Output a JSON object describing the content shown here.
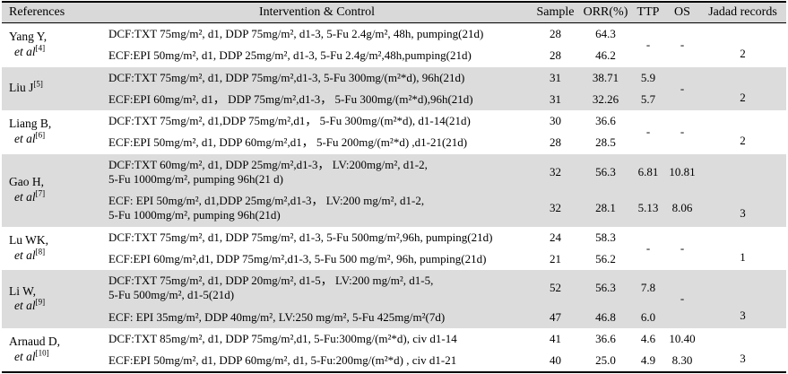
{
  "colors": {
    "header_bg": "#d9d9d9",
    "shaded_group_bg": "#dcdcdc",
    "border": "#000000",
    "text": "#000000",
    "background": "#ffffff"
  },
  "table": {
    "headers": {
      "references": "References",
      "intervention": "Intervention & Control",
      "sample": "Sample",
      "orr": "ORR(%)",
      "ttp": "TTP",
      "os": "OS",
      "jadad": "Jadad records"
    },
    "groups": [
      {
        "ref": {
          "name": "Yang Y,",
          "sup1": "",
          "etal": "et al",
          "sup2": "[4]"
        },
        "rows": [
          {
            "intervention": "DCF:TXT 75mg/m², d1, DDP 75mg/m², d1-3, 5-Fu 2.4g/m², 48h, pumping(21d)",
            "sample": "28",
            "orr": "64.3"
          },
          {
            "intervention": "ECF:EPI 50mg/m², d1, DDP 25mg/m², d1-3, 5-Fu 2.4g/m²,48h,pumping(21d)",
            "sample": "28",
            "orr": "46.2"
          }
        ],
        "ttp_shared": "-",
        "os_shared": "-",
        "jadad": "2"
      },
      {
        "ref": {
          "name": "Liu J",
          "sup1": "[5]",
          "etal": "",
          "sup2": ""
        },
        "rows": [
          {
            "intervention": "DCF:TXT 75mg/m², d1, DDP 75mg/m²,d1-3, 5-Fu 300mg/(m²*d), 96h(21d)",
            "sample": "31",
            "orr": "38.71",
            "ttp": "5.9"
          },
          {
            "intervention": "ECF:EPI 60mg/m², d1， DDP 75mg/m²,d1-3， 5-Fu 300mg/(m²*d),96h(21d)",
            "sample": "31",
            "orr": "32.26",
            "ttp": "5.7"
          }
        ],
        "os_shared": "-",
        "jadad": "2"
      },
      {
        "ref": {
          "name": "Liang B,",
          "sup1": "",
          "etal": "et al",
          "sup2": "[6]"
        },
        "rows": [
          {
            "intervention": "DCF:TXT 75mg/m², d1,DDP 75mg/m²,d1， 5-Fu 300mg/(m²*d), d1-14(21d)",
            "sample": "30",
            "orr": "36.6"
          },
          {
            "intervention": "ECF:EPI 50mg/m², d1, DDP 60mg/m²,d1， 5-Fu 200mg/(m²*d) ,d1-21(21d)",
            "sample": "28",
            "orr": "28.5"
          }
        ],
        "ttp_shared": "-",
        "os_shared": "-",
        "jadad": "2"
      },
      {
        "ref": {
          "name": "Gao H,",
          "sup1": "",
          "etal": "et al",
          "sup2": "[7]"
        },
        "rows": [
          {
            "intervention": "DCF:TXT 60mg/m², d1, DDP 25mg/m²,d1-3， LV:200mg/m², d1-2,\n5-Fu 1000mg/m², pumping 96h(21 d)",
            "sample": "32",
            "orr": "56.3",
            "ttp": "6.81",
            "os": "10.81"
          },
          {
            "intervention": "ECF: EPI 50mg/m², d1,DDP 25mg/m²,d1-3， LV:200 mg/m², d1-2,\n5-Fu 1000mg/m², pumping 96h(21d)",
            "sample": "32",
            "orr": "28.1",
            "ttp": "5.13",
            "os": "8.06"
          }
        ],
        "jadad": "3"
      },
      {
        "ref": {
          "name": "Lu WK,",
          "sup1": "",
          "etal": "et al",
          "sup2": "[8]"
        },
        "rows": [
          {
            "intervention": "DCF:TXT 75mg/m², d1, DDP 75mg/m², d1-3, 5-Fu 500mg/m²,96h, pumping(21d)",
            "sample": "24",
            "orr": "58.3"
          },
          {
            "intervention": "ECF:EPI 60mg/m²,d1, DDP 75mg/m²,d1-3, 5-Fu 500 mg/m², 96h, pumping(21d)",
            "sample": "21",
            "orr": "56.2"
          }
        ],
        "ttp_shared": "-",
        "os_shared": "-",
        "jadad": "1"
      },
      {
        "ref": {
          "name": "Li W,",
          "sup1": "",
          "etal": "et al",
          "sup2": "[9]"
        },
        "rows": [
          {
            "intervention": "DCF:TXT 75mg/m², d1, DDP 20mg/m², d1-5， LV:200 mg/m², d1-5,\n5-Fu 500mg/m², d1-5(21d)",
            "sample": "52",
            "orr": "56.3",
            "ttp": "7.8"
          },
          {
            "intervention": "ECF: EPI 35mg/m², DDP 40mg/m², LV:250 mg/m², 5-Fu 425mg/m²(7d)",
            "sample": "47",
            "orr": "46.8",
            "ttp": "6.0"
          }
        ],
        "os_shared": "-",
        "jadad": "3"
      },
      {
        "ref": {
          "name": "Arnaud D,",
          "sup1": "",
          "etal": "et al",
          "sup2": "[10]"
        },
        "rows": [
          {
            "intervention": "DCF:TXT 85mg/m², d1, DDP 75mg/m²,d1, 5-Fu:300mg/(m²*d), civ d1-14",
            "sample": "41",
            "orr": "36.6",
            "ttp": "4.6",
            "os": "10.40"
          },
          {
            "intervention": "ECF:EPI 50mg/m², d1, DDP 60mg/m², d1, 5-Fu:200mg/(m²*d) , civ d1-21",
            "sample": "40",
            "orr": "25.0",
            "ttp": "4.9",
            "os": "8.30"
          }
        ],
        "jadad": "3"
      }
    ]
  }
}
